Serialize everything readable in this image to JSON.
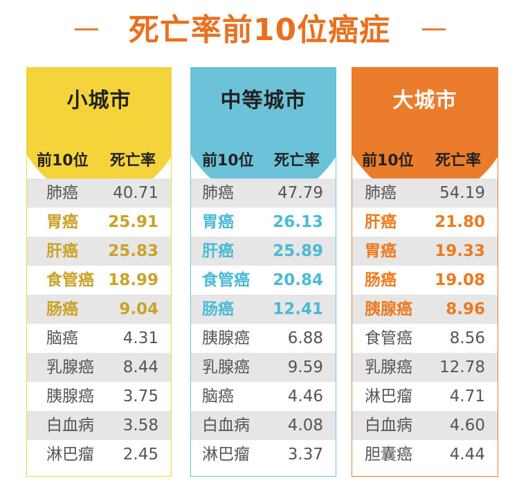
{
  "title": "死亡率前10位癌症",
  "header_labels": {
    "rank": "前10位",
    "rate": "死亡率"
  },
  "chart_data": {
    "type": "table",
    "title": "死亡率前10位癌症",
    "columns": [
      "前10位",
      "死亡率"
    ],
    "tables": [
      {
        "name": "小城市",
        "accent": "#f5d43b",
        "highlight": "#c9a227",
        "rows": [
          {
            "name": "肺癌",
            "value": 40.71
          },
          {
            "name": "胃癌",
            "value": 25.91
          },
          {
            "name": "肝癌",
            "value": 25.83
          },
          {
            "name": "食管癌",
            "value": 18.99
          },
          {
            "name": "肠癌",
            "value": 9.04
          },
          {
            "name": "脑癌",
            "value": 4.31
          },
          {
            "name": "乳腺癌",
            "value": 8.44
          },
          {
            "name": "胰腺癌",
            "value": 3.75
          },
          {
            "name": "白血病",
            "value": 3.58
          },
          {
            "name": "淋巴瘤",
            "value": 2.45
          }
        ]
      },
      {
        "name": "中等城市",
        "accent": "#6cc3d9",
        "highlight": "#4cbad6",
        "rows": [
          {
            "name": "肺癌",
            "value": 47.79
          },
          {
            "name": "胃癌",
            "value": 26.13
          },
          {
            "name": "肝癌",
            "value": 25.89
          },
          {
            "name": "食管癌",
            "value": 20.84
          },
          {
            "name": "肠癌",
            "value": 12.41
          },
          {
            "name": "胰腺癌",
            "value": 6.88
          },
          {
            "name": "乳腺癌",
            "value": 9.59
          },
          {
            "name": "脑癌",
            "value": 4.46
          },
          {
            "name": "白血病",
            "value": 4.08
          },
          {
            "name": "淋巴瘤",
            "value": 3.37
          }
        ]
      },
      {
        "name": "大城市",
        "accent": "#ea7c2b",
        "highlight": "#ee7a1f",
        "rows": [
          {
            "name": "肺癌",
            "value": 54.19
          },
          {
            "name": "肝癌",
            "value": 21.8
          },
          {
            "name": "胃癌",
            "value": 19.33
          },
          {
            "name": "肠癌",
            "value": 19.08
          },
          {
            "name": "胰腺癌",
            "value": 8.96
          },
          {
            "name": "食管癌",
            "value": 8.56
          },
          {
            "name": "乳腺癌",
            "value": 12.78
          },
          {
            "name": "淋巴瘤",
            "value": 4.71
          },
          {
            "name": "白血病",
            "value": 4.6
          },
          {
            "name": "胆囊癌",
            "value": 4.44
          }
        ]
      }
    ]
  }
}
